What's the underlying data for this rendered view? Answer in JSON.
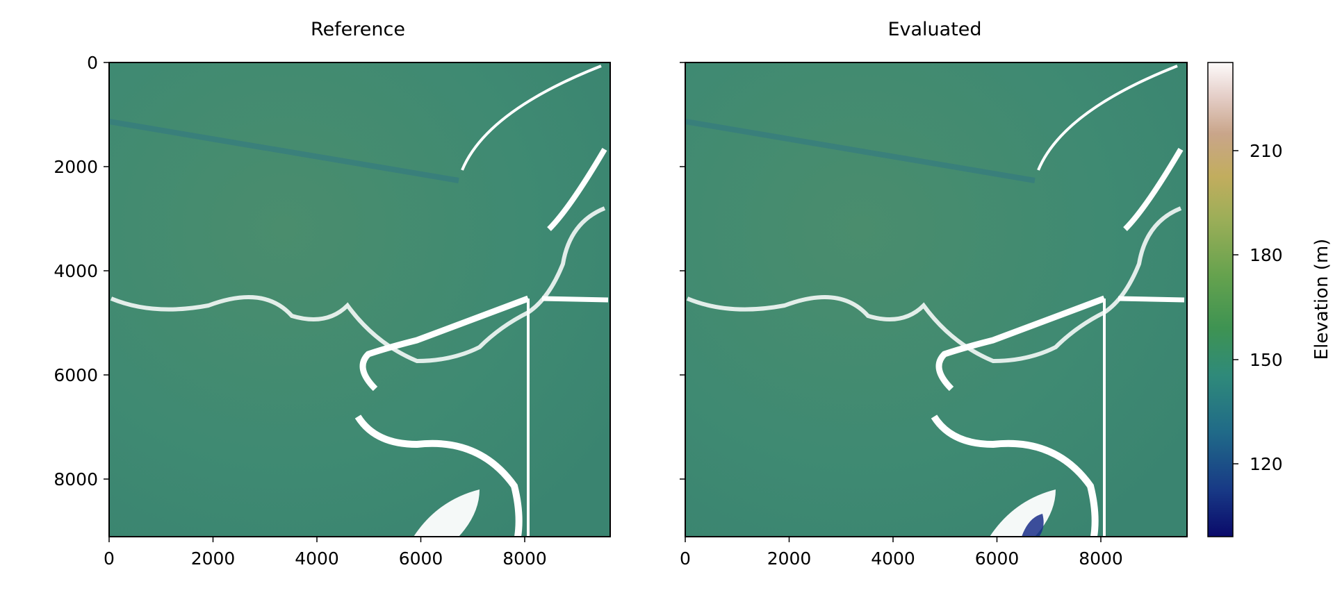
{
  "figure": {
    "panels": [
      {
        "title": "Reference"
      },
      {
        "title": "Evaluated"
      }
    ],
    "colorbar": {
      "label": "Elevation (m)"
    }
  },
  "chart_data": [
    {
      "type": "heatmap",
      "title": "Reference",
      "xlabel": "",
      "ylabel": "",
      "xlim": [
        0,
        9650
      ],
      "ylim": [
        9130,
        0
      ],
      "xticks": [
        0,
        2000,
        4000,
        6000,
        8000
      ],
      "yticks": [
        0,
        2000,
        4000,
        6000,
        8000
      ],
      "colormap": "gist_earth",
      "value_range": [
        96,
        246
      ],
      "dominant_value": 150,
      "nodata_color": "#ffffff"
    },
    {
      "type": "heatmap",
      "title": "Evaluated",
      "xlabel": "",
      "ylabel": "",
      "xlim": [
        0,
        9650
      ],
      "ylim": [
        9130,
        0
      ],
      "xticks": [
        0,
        2000,
        4000,
        6000,
        8000
      ],
      "yticks": [
        0,
        2000,
        4000,
        6000,
        8000
      ],
      "ytick_labels_shown": false,
      "colormap": "gist_earth",
      "value_range": [
        96,
        246
      ],
      "dominant_value": 150,
      "nodata_color": "#ffffff",
      "colorbar": {
        "label": "Elevation (m)",
        "ticks": [
          120,
          150,
          180,
          210
        ],
        "range": [
          96,
          246
        ]
      }
    }
  ]
}
